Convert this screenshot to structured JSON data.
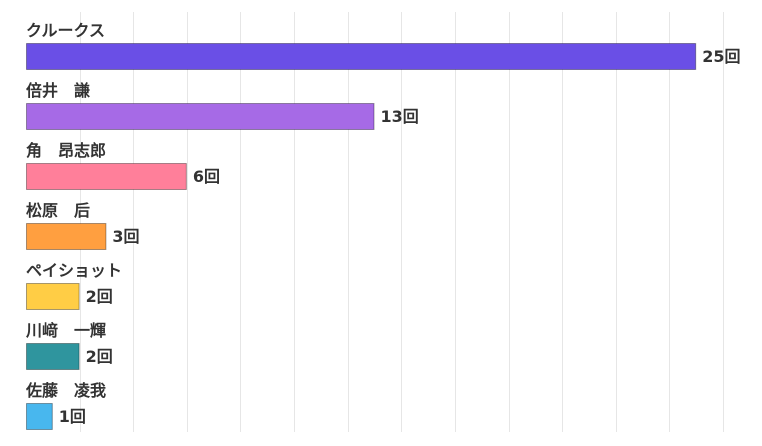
{
  "chart_data": {
    "type": "bar",
    "orientation": "horizontal",
    "categories": [
      "クルークス",
      "倍井　謙",
      "角　昂志郎",
      "松原　后",
      "ペイショット",
      "川﨑　一輝",
      "佐藤　凌我"
    ],
    "values": [
      25,
      13,
      6,
      3,
      2,
      2,
      1
    ],
    "value_labels": [
      "25回",
      "13回",
      "6回",
      "3回",
      "2回",
      "2回",
      "1回"
    ],
    "colors": [
      "#6a4fe6",
      "#a66ae6",
      "#ff7f9a",
      "#ff9f40",
      "#ffcd45",
      "#2f959e",
      "#48b7ee"
    ],
    "xlim": [
      0,
      26
    ],
    "grid": true,
    "legend": "none",
    "title": "",
    "xlabel": "",
    "ylabel": ""
  }
}
